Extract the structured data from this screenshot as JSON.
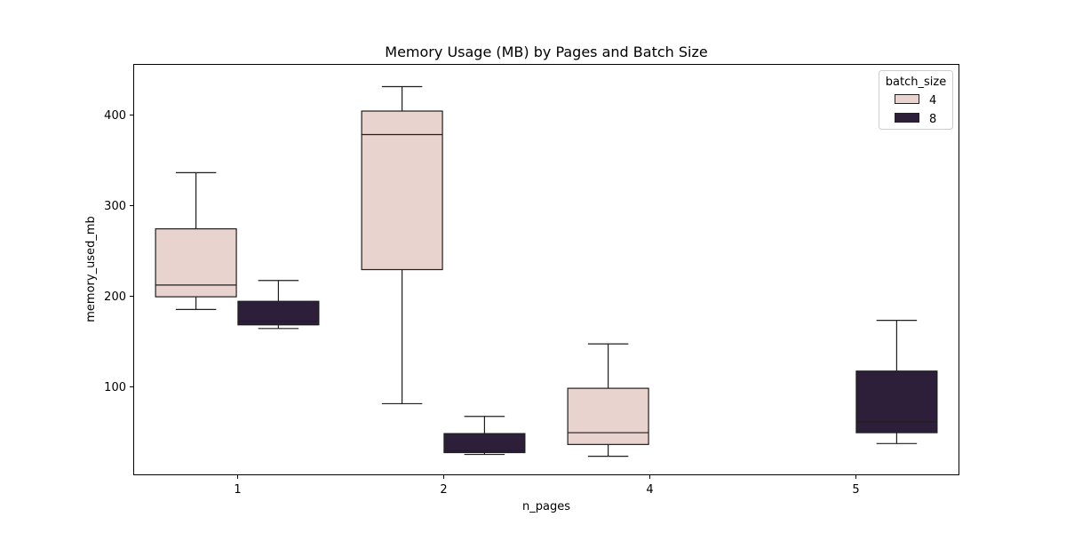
{
  "chart_data": {
    "type": "box",
    "title": "Memory Usage (MB) by Pages and Batch Size",
    "xlabel": "n_pages",
    "ylabel": "memory_used_mb",
    "categories": [
      "1",
      "2",
      "4",
      "5"
    ],
    "ylim": [
      3,
      455
    ],
    "yticks": [
      100,
      200,
      300,
      400
    ],
    "legend": {
      "title": "batch_size",
      "placement": "top-right"
    },
    "series": [
      {
        "name": "4",
        "color": "#e9d3cf",
        "boxes": [
          {
            "category": "1",
            "min": 185,
            "q1": 199,
            "median": 212,
            "q3": 274,
            "max": 336
          },
          {
            "category": "2",
            "min": 81,
            "q1": 229,
            "median": 378,
            "q3": 404,
            "max": 431
          },
          {
            "category": "4",
            "min": 23,
            "q1": 36,
            "median": 49,
            "q3": 98,
            "max": 147
          }
        ]
      },
      {
        "name": "8",
        "color": "#2d1f3a",
        "boxes": [
          {
            "category": "1",
            "min": 164,
            "q1": 168,
            "median": 172,
            "q3": 194,
            "max": 217
          },
          {
            "category": "2",
            "min": 25,
            "q1": 27,
            "median": 29,
            "q3": 48,
            "max": 67
          },
          {
            "category": "5",
            "min": 37,
            "q1": 49,
            "median": 61,
            "q3": 117,
            "max": 173
          }
        ]
      }
    ]
  }
}
